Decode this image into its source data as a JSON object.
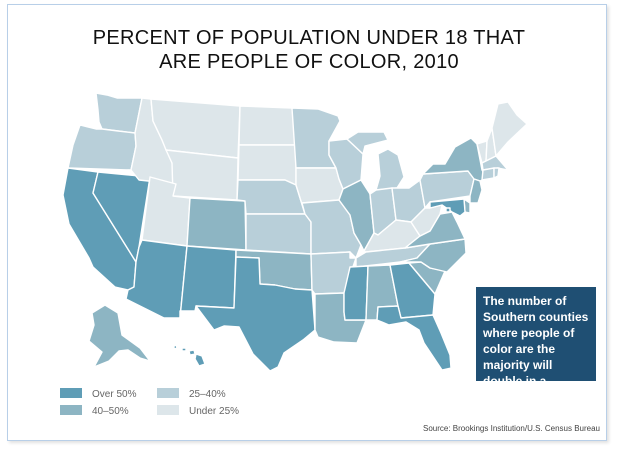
{
  "title": {
    "line1": "PERCENT OF POPULATION UNDER 18 THAT",
    "line2": "ARE PEOPLE OF COLOR, 2010"
  },
  "callout": {
    "text": "The number of Southern counties where people of color are the majority will double in a generation"
  },
  "legend": {
    "items": [
      {
        "label": "Over 50%",
        "color": "#5f9db6"
      },
      {
        "label": "40–50%",
        "color": "#8db5c3"
      },
      {
        "label": "25–40%",
        "color": "#b8cfd9"
      },
      {
        "label": "Under 25%",
        "color": "#dde6ea"
      }
    ]
  },
  "source": "Source: Brookings Institution/U.S. Census Bureau",
  "colors": {
    "over50": "#5f9db6",
    "40to50": "#8db5c3",
    "25to40": "#b8cfd9",
    "under25": "#dde6ea",
    "border": "#ffffff",
    "callout_bg": "#1f4f73",
    "frame": "#b8cfe8"
  },
  "states": {
    "WA": "25-40%",
    "OR": "25-40%",
    "CA": "Over 50%",
    "NV": "Over 50%",
    "ID": "Under 25%",
    "MT": "Under 25%",
    "WY": "Under 25%",
    "UT": "Under 25%",
    "AZ": "Over 50%",
    "CO": "40-50%",
    "NM": "Over 50%",
    "ND": "Under 25%",
    "SD": "Under 25%",
    "NE": "25-40%",
    "KS": "25-40%",
    "OK": "40-50%",
    "TX": "Over 50%",
    "MN": "25-40%",
    "IA": "Under 25%",
    "MO": "25-40%",
    "AR": "25-40%",
    "LA": "40-50%",
    "WI": "25-40%",
    "IL": "40-50%",
    "MS": "Over 50%",
    "MI": "25-40%",
    "IN": "25-40%",
    "KY": "Under 25%",
    "TN": "25-40%",
    "AL": "40-50%",
    "OH": "25-40%",
    "WV": "Under 25%",
    "GA": "Over 50%",
    "FL": "Over 50%",
    "SC": "40-50%",
    "NC": "40-50%",
    "VA": "40-50%",
    "PA": "25-40%",
    "NY": "40-50%",
    "VT": "Under 25%",
    "NH": "Under 25%",
    "ME": "Under 25%",
    "MA": "25-40%",
    "CT": "25-40%",
    "RI": "25-40%",
    "NJ": "40-50%",
    "DE": "40-50%",
    "MD": "Over 50%",
    "DC": "Over 50%",
    "AK": "40-50%",
    "HI": "Over 50%"
  }
}
